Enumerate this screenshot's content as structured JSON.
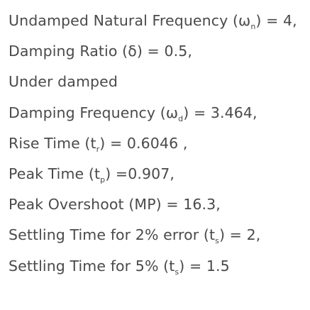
{
  "lines": {
    "l1": {
      "before": "Undamped Natural Frequency (",
      "sym": "ω",
      "sub": "n",
      "after": ") = 4,"
    },
    "l2": {
      "text": "Damping Ratio (δ) = 0.5,"
    },
    "l3": {
      "text": "Under damped"
    },
    "l4": {
      "before": "Damping Frequency (",
      "sym": "ω",
      "sub": "d",
      "after": ") = 3.464,"
    },
    "l5": {
      "before": "Rise Time (t",
      "sub": "r",
      "after": ") = 0.6046 ,"
    },
    "l6": {
      "before": "Peak Time (t",
      "sub": "p",
      "after": ") =0.907,"
    },
    "l7": {
      "text": "Peak Overshoot (MP) = 16.3,"
    },
    "l8": {
      "before": "Settling Time for 2% error (t",
      "sub": "s",
      "after": ") = 2,"
    },
    "l9": {
      "before": "Settling Time for 5% (t",
      "sub": "s",
      "after": ") = 1.5"
    }
  }
}
